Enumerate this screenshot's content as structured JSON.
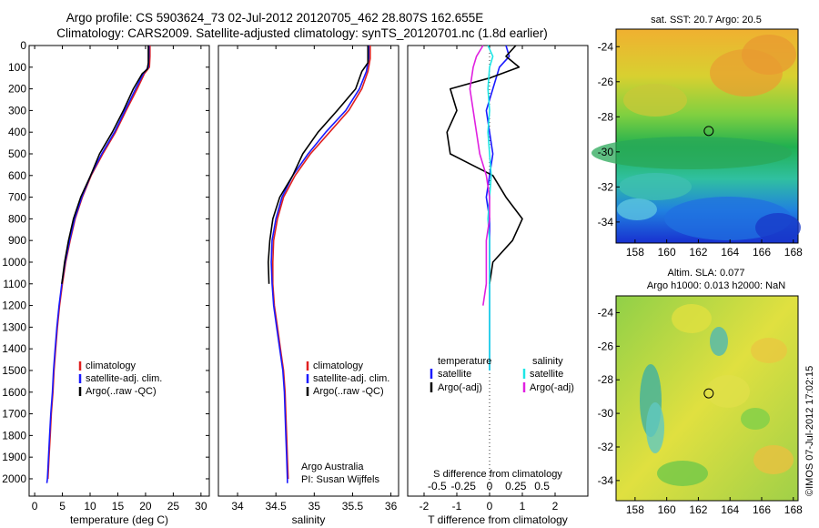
{
  "header": {
    "title_line1": "Argo profile: CS 5903624_73 02-Jul-2012 20120705_462 28.807S 162.655E",
    "title_line2": "Climatology: CARS2009. Satellite-adjusted climatology: synTS_20120701.nc (1.8d earlier)"
  },
  "colors": {
    "climatology": "#e02020",
    "satellite": "#1a1aff",
    "argo": "#000000",
    "salinity_satellite": "#1ee6e6",
    "salinity_argo": "#e020e0"
  },
  "chart_data": [
    {
      "type": "line",
      "panel": "temperature",
      "xlabel": "temperature (deg C)",
      "ylabel": "",
      "xlim": [
        -1,
        31.5
      ],
      "ylim": [
        2080,
        0
      ],
      "xticks": [
        0,
        5,
        10,
        15,
        20,
        25,
        30
      ],
      "yticks": [
        0,
        100,
        200,
        300,
        400,
        500,
        600,
        700,
        800,
        900,
        1000,
        1100,
        1200,
        1300,
        1400,
        1500,
        1600,
        1700,
        1800,
        1900,
        2000
      ],
      "legend": [
        "climatology",
        "satellite-adj. clim.",
        "Argo(..raw -QC)"
      ],
      "legend_position": "lower-middle",
      "series": [
        {
          "name": "climatology",
          "color": "#e02020",
          "points": [
            [
              20.8,
              0
            ],
            [
              20.8,
              50
            ],
            [
              20.7,
              100
            ],
            [
              19.8,
              130
            ],
            [
              18.5,
              200
            ],
            [
              16.5,
              300
            ],
            [
              14.6,
              400
            ],
            [
              12.3,
              500
            ],
            [
              10.2,
              600
            ],
            [
              8.6,
              700
            ],
            [
              7.3,
              800
            ],
            [
              6.4,
              900
            ],
            [
              5.6,
              1000
            ],
            [
              5.0,
              1100
            ],
            [
              4.5,
              1200
            ],
            [
              4.1,
              1300
            ],
            [
              3.8,
              1400
            ],
            [
              3.5,
              1500
            ],
            [
              3.3,
              1600
            ],
            [
              3.0,
              1700
            ],
            [
              2.8,
              1800
            ],
            [
              2.6,
              1900
            ],
            [
              2.4,
              2000
            ]
          ]
        },
        {
          "name": "satellite-adj. clim.",
          "color": "#1a1aff",
          "points": [
            [
              20.6,
              0
            ],
            [
              20.6,
              50
            ],
            [
              20.5,
              100
            ],
            [
              19.6,
              130
            ],
            [
              18.2,
              200
            ],
            [
              16.3,
              300
            ],
            [
              14.4,
              400
            ],
            [
              12.1,
              500
            ],
            [
              10.1,
              600
            ],
            [
              8.5,
              700
            ],
            [
              7.2,
              800
            ],
            [
              6.3,
              900
            ],
            [
              5.5,
              1000
            ],
            [
              4.9,
              1100
            ],
            [
              4.4,
              1200
            ],
            [
              4.0,
              1300
            ],
            [
              3.7,
              1400
            ],
            [
              3.4,
              1500
            ],
            [
              3.2,
              1600
            ],
            [
              2.9,
              1700
            ],
            [
              2.7,
              1800
            ],
            [
              2.5,
              1900
            ],
            [
              2.3,
              2000
            ],
            [
              2.2,
              2020
            ]
          ]
        },
        {
          "name": "Argo(..raw -QC)",
          "color": "#000000",
          "points": [
            [
              20.5,
              0
            ],
            [
              20.5,
              80
            ],
            [
              20.3,
              110
            ],
            [
              19.4,
              130
            ],
            [
              17.8,
              200
            ],
            [
              16.0,
              300
            ],
            [
              14.0,
              400
            ],
            [
              11.7,
              500
            ],
            [
              10.1,
              600
            ],
            [
              8.3,
              700
            ],
            [
              7.0,
              800
            ],
            [
              6.1,
              900
            ],
            [
              5.4,
              1000
            ],
            [
              4.9,
              1100
            ]
          ]
        }
      ]
    },
    {
      "type": "line",
      "panel": "salinity",
      "xlabel": "salinity",
      "ylabel": "",
      "xlim": [
        33.75,
        36.1
      ],
      "ylim": [
        2080,
        0
      ],
      "xticks": [
        34,
        34.5,
        35,
        35.5,
        36
      ],
      "legend": [
        "climatology",
        "satellite-adj. clim.",
        "Argo(..raw -QC)"
      ],
      "legend_position": "lower-middle",
      "annotation": [
        "Argo Australia",
        "PI: Susan Wijffels"
      ],
      "series": [
        {
          "name": "climatology",
          "color": "#e02020",
          "points": [
            [
              35.73,
              0
            ],
            [
              35.73,
              60
            ],
            [
              35.7,
              120
            ],
            [
              35.62,
              200
            ],
            [
              35.45,
              300
            ],
            [
              35.2,
              400
            ],
            [
              34.95,
              500
            ],
            [
              34.75,
              600
            ],
            [
              34.6,
              700
            ],
            [
              34.52,
              800
            ],
            [
              34.47,
              900
            ],
            [
              34.46,
              1000
            ],
            [
              34.46,
              1100
            ],
            [
              34.48,
              1200
            ],
            [
              34.52,
              1300
            ],
            [
              34.56,
              1400
            ],
            [
              34.6,
              1500
            ],
            [
              34.62,
              1600
            ],
            [
              34.63,
              1700
            ],
            [
              34.64,
              1800
            ],
            [
              34.65,
              1900
            ],
            [
              34.66,
              2000
            ]
          ]
        },
        {
          "name": "satellite-adj. clim.",
          "color": "#1a1aff",
          "points": [
            [
              35.71,
              0
            ],
            [
              35.71,
              60
            ],
            [
              35.68,
              120
            ],
            [
              35.59,
              200
            ],
            [
              35.41,
              300
            ],
            [
              35.15,
              400
            ],
            [
              34.92,
              500
            ],
            [
              34.72,
              600
            ],
            [
              34.58,
              700
            ],
            [
              34.5,
              800
            ],
            [
              34.45,
              900
            ],
            [
              34.44,
              1000
            ],
            [
              34.45,
              1100
            ],
            [
              34.47,
              1200
            ],
            [
              34.51,
              1300
            ],
            [
              34.55,
              1400
            ],
            [
              34.59,
              1500
            ],
            [
              34.61,
              1600
            ],
            [
              34.62,
              1700
            ],
            [
              34.63,
              1800
            ],
            [
              34.64,
              1900
            ],
            [
              34.65,
              2000
            ],
            [
              34.65,
              2020
            ]
          ]
        },
        {
          "name": "Argo(..raw -QC)",
          "color": "#000000",
          "points": [
            [
              35.7,
              0
            ],
            [
              35.7,
              80
            ],
            [
              35.62,
              120
            ],
            [
              35.54,
              200
            ],
            [
              35.3,
              300
            ],
            [
              35.05,
              400
            ],
            [
              34.85,
              500
            ],
            [
              34.72,
              600
            ],
            [
              34.55,
              700
            ],
            [
              34.46,
              800
            ],
            [
              34.42,
              900
            ],
            [
              34.4,
              1000
            ],
            [
              34.41,
              1100
            ]
          ]
        }
      ]
    },
    {
      "type": "line",
      "panel": "difference",
      "xlabel": "T difference from climatology",
      "xlabel_secondary": "S difference from climatology",
      "xlim": [
        -2.5,
        3.0
      ],
      "ylim": [
        2080,
        0
      ],
      "xticks": [
        -2,
        -1,
        0,
        1,
        2
      ],
      "xticks_secondary": [
        -0.5,
        -0.25,
        0,
        0.25,
        0.5
      ],
      "legend_temperature_heading": "temperature",
      "legend_salinity_heading": "salinity",
      "legend_temperature": [
        "satellite",
        "Argo(-adj)"
      ],
      "legend_salinity": [
        "satellite",
        "Argo(-adj)"
      ],
      "series": [
        {
          "name": "T satellite",
          "color": "#1a1aff",
          "points": [
            [
              0.5,
              0
            ],
            [
              0.6,
              50
            ],
            [
              0.3,
              100
            ],
            [
              0.1,
              200
            ],
            [
              -0.1,
              300
            ],
            [
              0.0,
              400
            ],
            [
              0.1,
              500
            ],
            [
              0.0,
              600
            ],
            [
              -0.1,
              700
            ],
            [
              0.0,
              800
            ],
            [
              0.0,
              900
            ],
            [
              0.0,
              1000
            ],
            [
              0.0,
              1100
            ],
            [
              0.0,
              1200
            ],
            [
              0.0,
              1300
            ],
            [
              0.0,
              1400
            ],
            [
              0.0,
              1500
            ]
          ]
        },
        {
          "name": "T Argo(-adj)",
          "color": "#000000",
          "points": [
            [
              0.8,
              0
            ],
            [
              0.5,
              50
            ],
            [
              0.9,
              100
            ],
            [
              0.0,
              150
            ],
            [
              -1.2,
              200
            ],
            [
              -1.0,
              300
            ],
            [
              -1.3,
              400
            ],
            [
              -1.2,
              500
            ],
            [
              0.1,
              600
            ],
            [
              0.5,
              700
            ],
            [
              1.0,
              800
            ],
            [
              0.7,
              900
            ],
            [
              0.1,
              1000
            ],
            [
              0.0,
              1100
            ]
          ]
        },
        {
          "name": "S satellite",
          "color": "#1ee6e6",
          "points": [
            [
              -0.05,
              0
            ],
            [
              0.1,
              50
            ],
            [
              0.0,
              100
            ],
            [
              -0.05,
              200
            ],
            [
              0.0,
              300
            ],
            [
              -0.05,
              400
            ],
            [
              0.0,
              500
            ],
            [
              0.05,
              600
            ],
            [
              0.0,
              700
            ],
            [
              -0.05,
              800
            ],
            [
              0.0,
              900
            ],
            [
              0.0,
              1000
            ],
            [
              0.0,
              1100
            ],
            [
              0.0,
              1200
            ],
            [
              0.0,
              1300
            ],
            [
              0.0,
              1400
            ],
            [
              0.0,
              1500
            ]
          ]
        },
        {
          "name": "S Argo(-adj)",
          "color": "#e020e0",
          "points": [
            [
              -0.2,
              0
            ],
            [
              -0.4,
              50
            ],
            [
              -0.5,
              100
            ],
            [
              -0.6,
              200
            ],
            [
              -0.5,
              300
            ],
            [
              -0.4,
              400
            ],
            [
              -0.3,
              500
            ],
            [
              -0.1,
              600
            ],
            [
              0.0,
              700
            ],
            [
              0.0,
              800
            ],
            [
              -0.1,
              900
            ],
            [
              -0.1,
              1000
            ],
            [
              -0.1,
              1100
            ],
            [
              -0.2,
              1200
            ]
          ]
        }
      ]
    }
  ],
  "maps": {
    "sst": {
      "title": "sat. SST: 20.7 Argo: 20.5",
      "lon_ticks": [
        "158",
        "160",
        "162",
        "164",
        "166",
        "168"
      ],
      "lat_ticks": [
        "-24",
        "-26",
        "-28",
        "-30",
        "-32",
        "-34"
      ],
      "lon_range": [
        156.8,
        168.3
      ],
      "lat_range": [
        -35.2,
        -23.0
      ],
      "profile_lon": 162.655,
      "profile_lat": -28.807
    },
    "sla": {
      "title_line1": "Altim. SLA: 0.077",
      "title_line2": "Argo h1000: 0.013 h2000: NaN",
      "lon_ticks": [
        "158",
        "160",
        "162",
        "164",
        "166",
        "168"
      ],
      "lat_ticks": [
        "-24",
        "-26",
        "-28",
        "-30",
        "-32",
        "-34"
      ],
      "lon_range": [
        156.8,
        168.3
      ],
      "lat_range": [
        -35.2,
        -23.0
      ],
      "profile_lon": 162.655,
      "profile_lat": -28.807
    }
  },
  "footer": {
    "credit": "©IMOS 07-Jul-2012 17:02:15"
  }
}
